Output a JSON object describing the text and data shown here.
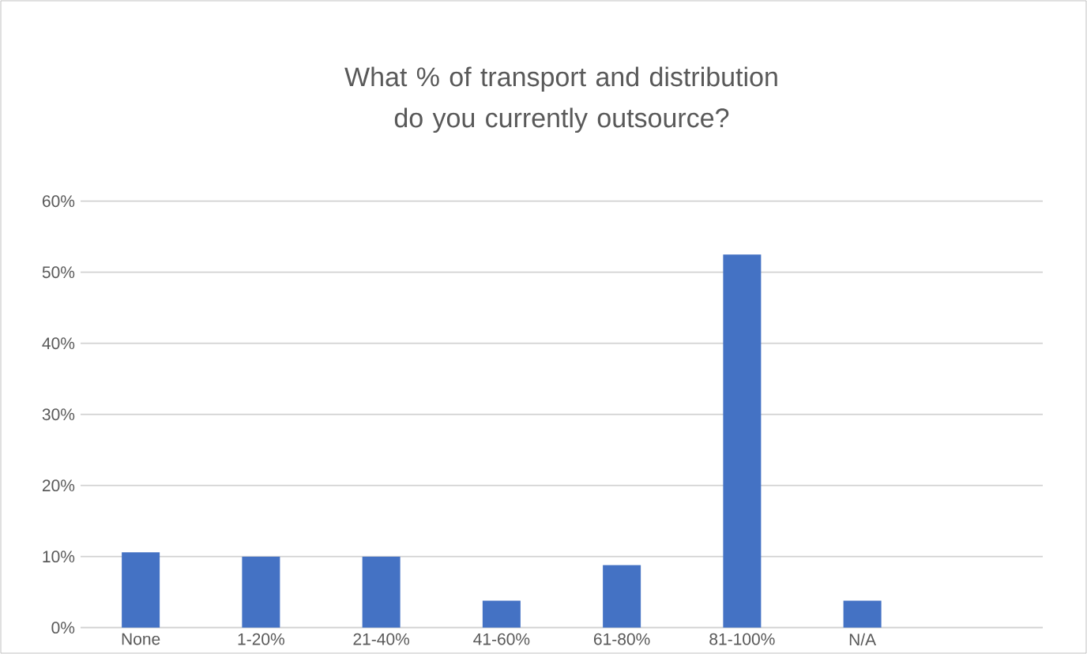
{
  "chart_data": {
    "type": "bar",
    "title": "What % of transport and distribution do you currently outsource?",
    "categories": [
      "None",
      "1-20%",
      "21-40%",
      "41-60%",
      "61-80%",
      "81-100%",
      "N/A",
      null
    ],
    "values": [
      10.6,
      10,
      10,
      3.8,
      8.8,
      52.5,
      3.8,
      null
    ],
    "color": "#4472c4",
    "ylim": [
      0,
      60
    ],
    "yticks": [
      {
        "value": 0,
        "label": "0%"
      },
      {
        "value": 10,
        "label": "10%"
      },
      {
        "value": 20,
        "label": "20%"
      },
      {
        "value": 30,
        "label": "30%"
      },
      {
        "value": 40,
        "label": "40%"
      },
      {
        "value": 50,
        "label": "50%"
      },
      {
        "value": 60,
        "label": "60%"
      }
    ],
    "grid": "y"
  }
}
